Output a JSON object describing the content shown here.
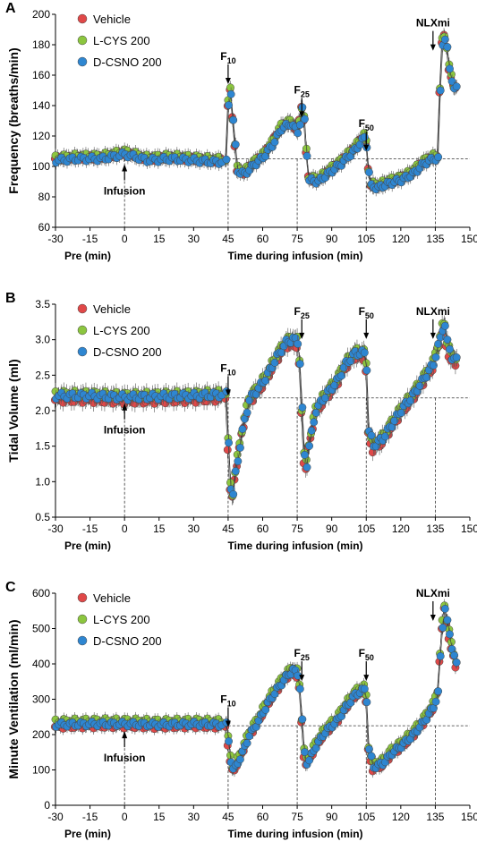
{
  "colors": {
    "Vehicle": "#e04848",
    "L-CYS 200": "#8cc63f",
    "D-CSNO 200": "#2e86d1"
  },
  "chart_data": [
    {
      "type": "scatter",
      "panel": "A",
      "ylabel": "Frequency (breaths/min)",
      "xlabel_pre": "Pre (min)",
      "xlabel_main": "Time during infusion (min)",
      "ylim": [
        60,
        200
      ],
      "yticks": [
        60,
        80,
        100,
        120,
        140,
        160,
        180,
        200
      ],
      "xlim": [
        -30,
        150
      ],
      "xticks": [
        -30,
        -15,
        0,
        15,
        30,
        45,
        60,
        75,
        90,
        105,
        120,
        135,
        150
      ],
      "baseline": 105,
      "series_names": [
        "Vehicle",
        "L-CYS 200",
        "D-CSNO 200"
      ],
      "annotations": [
        {
          "label": "Infusion",
          "x": 0,
          "y": 115
        },
        {
          "label": "F",
          "sub": "10",
          "x": 45,
          "y": 170
        },
        {
          "label": "F",
          "sub": "25",
          "x": 77,
          "y": 148
        },
        {
          "label": "F",
          "sub": "50",
          "x": 105,
          "y": 126
        },
        {
          "label": "NLXmi",
          "x": 134,
          "y": 192
        }
      ],
      "keypoints": [
        [
          -30,
          105
        ],
        [
          -20,
          106
        ],
        [
          -10,
          106
        ],
        [
          0,
          109
        ],
        [
          10,
          105
        ],
        [
          20,
          106
        ],
        [
          30,
          105
        ],
        [
          38,
          104
        ],
        [
          44,
          104
        ],
        [
          45.5,
          160
        ],
        [
          46.5,
          140
        ],
        [
          47.5,
          122
        ],
        [
          49,
          98
        ],
        [
          52,
          96
        ],
        [
          56,
          102
        ],
        [
          60,
          107
        ],
        [
          64,
          115
        ],
        [
          68,
          126
        ],
        [
          72,
          129
        ],
        [
          75,
          124
        ],
        [
          76.5,
          132
        ],
        [
          77.5,
          145
        ],
        [
          78.5,
          118
        ],
        [
          80,
          92
        ],
        [
          84,
          91
        ],
        [
          88,
          96
        ],
        [
          94,
          103
        ],
        [
          100,
          112
        ],
        [
          104,
          120
        ],
        [
          105,
          115
        ],
        [
          106.5,
          88
        ],
        [
          110,
          87
        ],
        [
          115,
          90
        ],
        [
          120,
          92
        ],
        [
          125,
          96
        ],
        [
          130,
          103
        ],
        [
          134,
          106
        ],
        [
          136,
          106
        ],
        [
          137,
          150
        ],
        [
          138,
          182
        ],
        [
          139,
          185
        ],
        [
          140,
          178
        ],
        [
          141,
          165
        ],
        [
          143,
          152
        ]
      ],
      "offsets": [
        0,
        1,
        -1
      ],
      "err": 4.5
    },
    {
      "type": "scatter",
      "panel": "B",
      "ylabel": "Tidal Volume (ml)",
      "xlabel_pre": "Pre (min)",
      "xlabel_main": "Time  during infusion (min)",
      "ylim": [
        0.5,
        3.5
      ],
      "yticks": [
        0.5,
        1.0,
        1.5,
        2.0,
        2.5,
        3.0,
        3.5
      ],
      "ytick_labels": [
        "0.5",
        "1.0",
        "1.5",
        "2.0",
        "2.5",
        "3.0",
        "3.5"
      ],
      "xlim": [
        -30,
        150
      ],
      "xticks": [
        -30,
        -15,
        0,
        15,
        30,
        45,
        60,
        75,
        90,
        105,
        120,
        135,
        150
      ],
      "baseline": 2.18,
      "series_names": [
        "Vehicle",
        "L-CYS 200",
        "D-CSNO 200"
      ],
      "annotations": [
        {
          "label": "Infusion",
          "x": 0,
          "y": 1.92
        },
        {
          "label": "F",
          "sub": "10",
          "x": 45,
          "y": 2.55
        },
        {
          "label": "F",
          "sub": "25",
          "x": 77,
          "y": 3.35
        },
        {
          "label": "F",
          "sub": "50",
          "x": 105,
          "y": 3.35
        },
        {
          "label": "NLXmi",
          "x": 134,
          "y": 3.35
        }
      ],
      "keypoints": [
        [
          -30,
          2.2
        ],
        [
          -15,
          2.2
        ],
        [
          0,
          2.18
        ],
        [
          15,
          2.19
        ],
        [
          30,
          2.2
        ],
        [
          44,
          2.22
        ],
        [
          45.5,
          1.2
        ],
        [
          46.5,
          0.65
        ],
        [
          48,
          1.1
        ],
        [
          51,
          1.7
        ],
        [
          54,
          2.15
        ],
        [
          58,
          2.3
        ],
        [
          62,
          2.5
        ],
        [
          66,
          2.75
        ],
        [
          70,
          2.95
        ],
        [
          73,
          3.0
        ],
        [
          75.5,
          2.95
        ],
        [
          76.5,
          2.4
        ],
        [
          77.5,
          1.6
        ],
        [
          78.5,
          1.1
        ],
        [
          80,
          1.5
        ],
        [
          83,
          2.0
        ],
        [
          87,
          2.2
        ],
        [
          92,
          2.4
        ],
        [
          96,
          2.65
        ],
        [
          100,
          2.8
        ],
        [
          104,
          2.8
        ],
        [
          105,
          2.6
        ],
        [
          106,
          1.7
        ],
        [
          108,
          1.5
        ],
        [
          112,
          1.6
        ],
        [
          116,
          1.8
        ],
        [
          120,
          2.0
        ],
        [
          125,
          2.2
        ],
        [
          130,
          2.45
        ],
        [
          134,
          2.65
        ],
        [
          136,
          2.9
        ],
        [
          137,
          3.0
        ],
        [
          138,
          3.15
        ],
        [
          139,
          3.2
        ],
        [
          140,
          2.95
        ],
        [
          142,
          2.75
        ],
        [
          144,
          2.7
        ]
      ],
      "offsets": [
        -0.05,
        0.04,
        0.01
      ],
      "err": 0.12
    },
    {
      "type": "scatter",
      "panel": "C",
      "ylabel": "Minute Ventilation (ml/min)",
      "xlabel_pre": "Pre (min)",
      "xlabel_main": "Time during infusion (min)",
      "ylim": [
        0,
        600
      ],
      "yticks": [
        0,
        100,
        200,
        300,
        400,
        500,
        600
      ],
      "xlim": [
        -30,
        150
      ],
      "xticks": [
        -30,
        -15,
        0,
        15,
        30,
        45,
        60,
        75,
        90,
        105,
        120,
        135,
        150
      ],
      "baseline": 225,
      "series_names": [
        "Vehicle",
        "L-CYS 200",
        "D-CSNO 200"
      ],
      "annotations": [
        {
          "label": "Infusion",
          "x": 0,
          "y": 170
        },
        {
          "label": "F",
          "sub": "10",
          "x": 45,
          "y": 290
        },
        {
          "label": "F",
          "sub": "25",
          "x": 77,
          "y": 420
        },
        {
          "label": "F",
          "sub": "50",
          "x": 105,
          "y": 420
        },
        {
          "label": "NLXmi",
          "x": 134,
          "y": 590
        }
      ],
      "keypoints": [
        [
          -30,
          230
        ],
        [
          -15,
          232
        ],
        [
          0,
          232
        ],
        [
          15,
          230
        ],
        [
          30,
          232
        ],
        [
          44,
          230
        ],
        [
          45.5,
          160
        ],
        [
          46.5,
          100
        ],
        [
          48,
          110
        ],
        [
          51,
          150
        ],
        [
          54,
          200
        ],
        [
          58,
          240
        ],
        [
          62,
          290
        ],
        [
          66,
          330
        ],
        [
          70,
          365
        ],
        [
          73,
          385
        ],
        [
          75.5,
          370
        ],
        [
          76.5,
          300
        ],
        [
          77.5,
          180
        ],
        [
          78.5,
          120
        ],
        [
          80,
          130
        ],
        [
          83,
          170
        ],
        [
          87,
          210
        ],
        [
          92,
          240
        ],
        [
          96,
          280
        ],
        [
          100,
          315
        ],
        [
          104,
          330
        ],
        [
          105,
          300
        ],
        [
          106,
          160
        ],
        [
          108,
          110
        ],
        [
          112,
          120
        ],
        [
          116,
          150
        ],
        [
          120,
          170
        ],
        [
          125,
          200
        ],
        [
          130,
          240
        ],
        [
          134,
          280
        ],
        [
          136,
          320
        ],
        [
          137,
          420
        ],
        [
          138,
          510
        ],
        [
          139,
          560
        ],
        [
          140,
          520
        ],
        [
          142,
          450
        ],
        [
          144,
          400
        ]
      ],
      "offsets": [
        -8,
        8,
        -2
      ],
      "err": 18
    }
  ]
}
